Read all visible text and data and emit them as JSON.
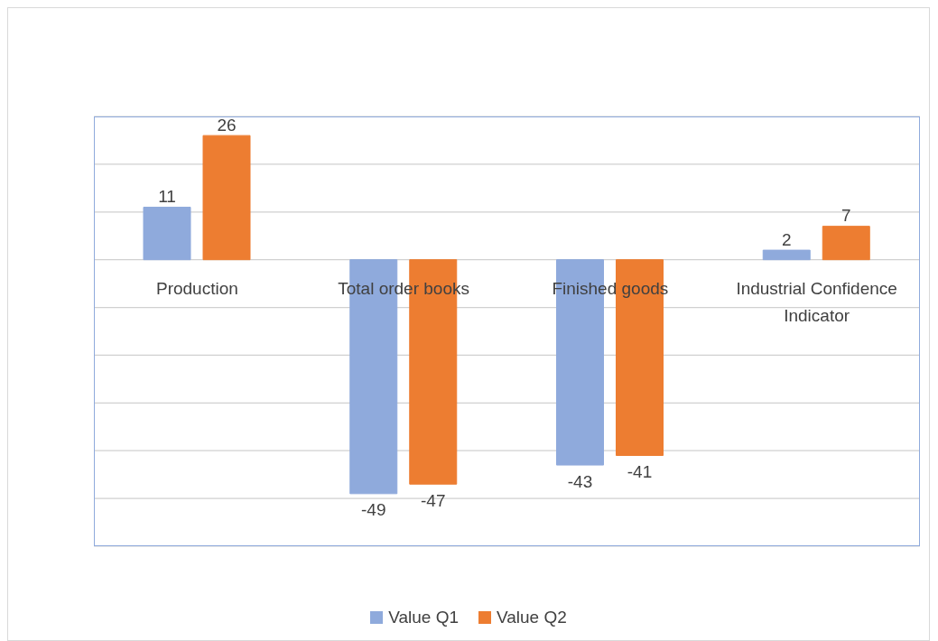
{
  "chart_data": {
    "type": "bar",
    "categories": [
      "Production",
      "Total order books",
      "Finished goods",
      "Industrial Confidence Indicator"
    ],
    "series": [
      {
        "name": "Value Q1",
        "color": "#8faadc",
        "values": [
          11,
          -49,
          -43,
          2
        ]
      },
      {
        "name": "Value Q2",
        "color": "#ed7d31",
        "values": [
          26,
          -47,
          -41,
          7
        ]
      }
    ],
    "ylim": [
      -60,
      30
    ],
    "yticks": [
      {
        "value": -60,
        "label": null
      },
      {
        "value": -50,
        "label": null
      },
      {
        "value": -40,
        "label": null
      },
      {
        "value": -30,
        "label": null
      },
      {
        "value": -20,
        "label": null
      },
      {
        "value": -10,
        "label": null
      },
      {
        "value": 0,
        "label": null
      },
      {
        "value": 10,
        "label": null
      },
      {
        "value": 20,
        "label": null
      },
      {
        "value": 30,
        "label": null
      }
    ],
    "grid": "y",
    "legend": "bottom",
    "data_labels": true,
    "tick_labels": "x"
  }
}
